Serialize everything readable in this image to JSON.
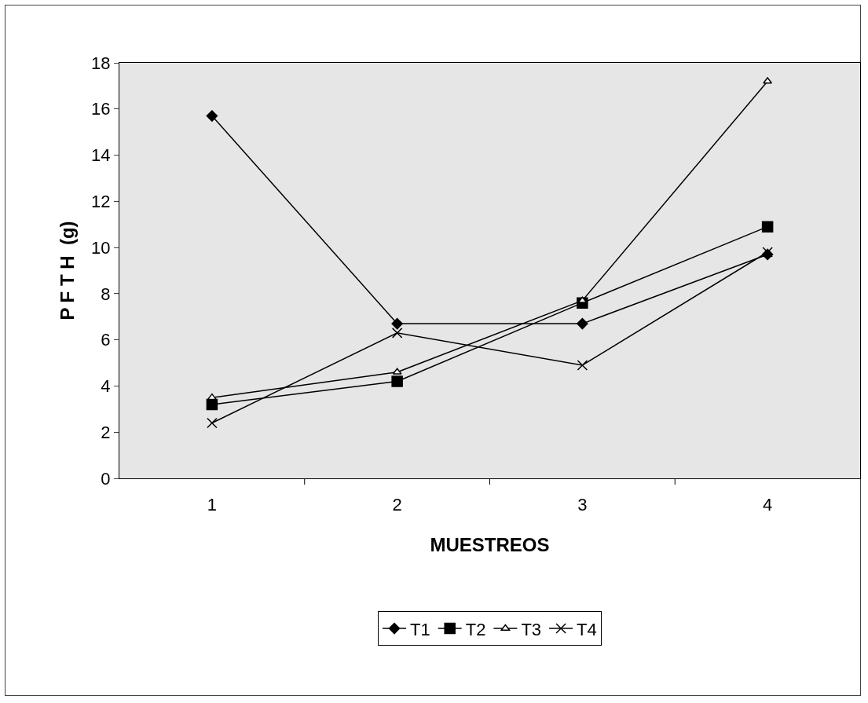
{
  "chart_data": {
    "type": "line",
    "xlabel": "MUESTREOS",
    "ylabel": "P F T H  (g)",
    "categories": [
      "1",
      "2",
      "3",
      "4"
    ],
    "series": [
      {
        "name": "T1",
        "color": "#000000",
        "marker": "diamond",
        "values": [
          15.7,
          6.7,
          6.7,
          9.7
        ]
      },
      {
        "name": "T2",
        "color": "#000000",
        "marker": "square",
        "values": [
          3.2,
          4.2,
          7.6,
          10.9
        ]
      },
      {
        "name": "T3",
        "color": "#000000",
        "marker": "triangle",
        "values": [
          3.5,
          4.6,
          7.7,
          17.2
        ]
      },
      {
        "name": "T4",
        "color": "#000000",
        "marker": "cross",
        "values": [
          2.4,
          6.3,
          4.9,
          9.8
        ]
      }
    ],
    "ylim": [
      0,
      18
    ],
    "yticks": [
      0,
      2,
      4,
      6,
      8,
      10,
      12,
      14,
      16,
      18
    ],
    "grid": false,
    "legend": "bottom",
    "line_style": "solid"
  }
}
